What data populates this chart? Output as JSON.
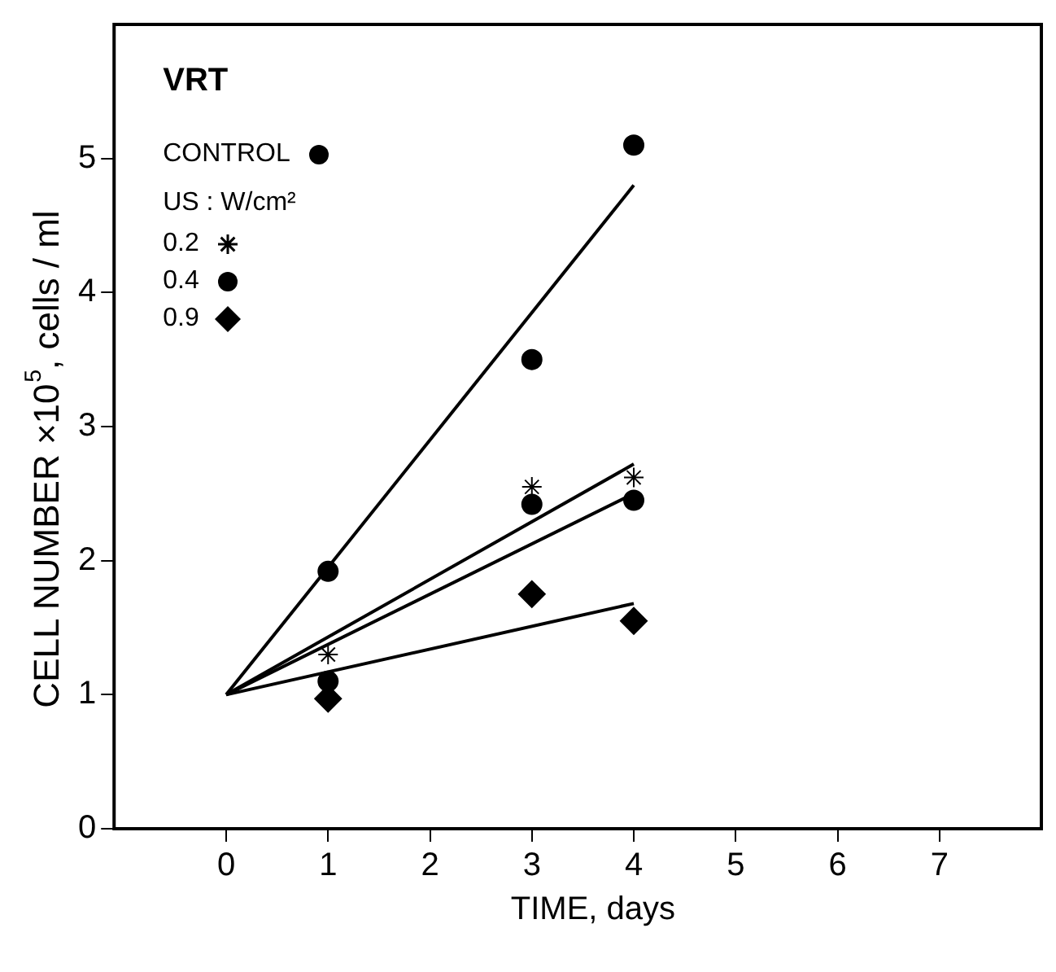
{
  "chart_data": {
    "type": "scatter",
    "xlabel": "TIME, days",
    "ylabel": "CELL NUMBER ×10$^{5}$, cells / ml",
    "legend_title": "US : W/cm²",
    "annotations": [
      "VRT"
    ],
    "xlim": [
      -1.1,
      8
    ],
    "xticks": [
      0,
      1,
      2,
      3,
      4,
      5,
      6,
      7
    ],
    "ylim": [
      0,
      6
    ],
    "yticks": [
      0,
      1,
      2,
      3,
      4,
      5
    ],
    "grid": false,
    "legend": "top left",
    "series": [
      {
        "name": "CONTROL",
        "color": "#000000",
        "marker": "circle",
        "x": [
          1,
          3,
          4
        ],
        "values": [
          1.92,
          3.5,
          5.1
        ]
      },
      {
        "name": "0.2",
        "color": "#000000",
        "marker": "cross",
        "x": [
          1,
          3,
          4
        ],
        "values": [
          1.3,
          2.55,
          2.62
        ]
      },
      {
        "name": "0.4",
        "color": "#000000",
        "marker": "circle",
        "x": [
          1,
          3,
          4
        ],
        "values": [
          1.1,
          2.42,
          2.45
        ]
      },
      {
        "name": "0.9",
        "color": "#000000",
        "marker": "diamond",
        "x": [
          1,
          3,
          4
        ],
        "values": [
          0.97,
          1.75,
          1.55
        ]
      },
      {
        "type": "line",
        "color": "#000000",
        "marker": "none",
        "x": [
          0,
          4
        ],
        "values": [
          1,
          4.8
        ]
      },
      {
        "type": "line",
        "color": "#000000",
        "marker": "none",
        "x": [
          0,
          4
        ],
        "values": [
          1,
          2.72
        ]
      },
      {
        "type": "line",
        "color": "#000000",
        "marker": "none",
        "x": [
          0,
          4
        ],
        "values": [
          1,
          2.5
        ]
      },
      {
        "type": "line",
        "color": "#000000",
        "marker": "none",
        "x": [
          0,
          4
        ],
        "values": [
          1,
          1.68
        ]
      }
    ]
  }
}
